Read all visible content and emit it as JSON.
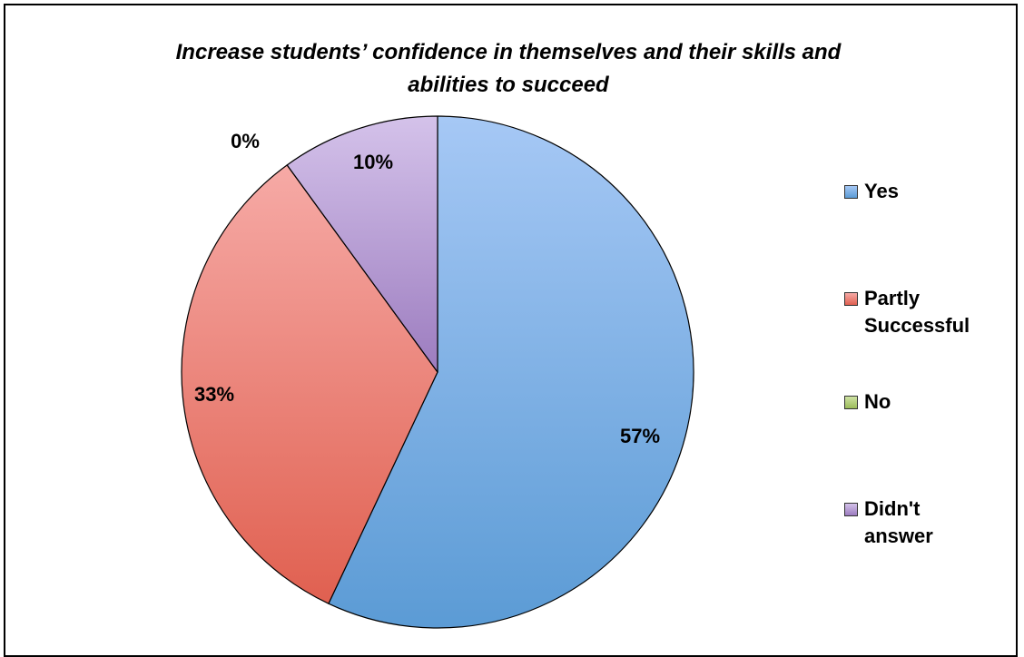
{
  "chart_data": {
    "type": "pie",
    "title_lines": [
      "Increase students’ confidence in themselves and their skills and",
      "abilities to succeed"
    ],
    "slices": [
      {
        "label": "Yes",
        "value": 57,
        "display": "57%",
        "color": "#5b9bd5",
        "light": "#a6c8f5"
      },
      {
        "label": "Partly Successful",
        "value": 33,
        "display": "33%",
        "color": "#e06050",
        "light": "#f6aaa6"
      },
      {
        "label": "No",
        "value": 0,
        "display": "0%",
        "color": "#9bbb59",
        "light": "#cfe3a4"
      },
      {
        "label": "Didn't answer",
        "value": 10,
        "display": "10%",
        "color": "#9c7cbf",
        "light": "#d4c2ea"
      }
    ],
    "legend_position": "right"
  },
  "legend_lines": [
    [
      "Yes"
    ],
    [
      "Partly",
      "Successful"
    ],
    [
      "No"
    ],
    [
      "Didn't",
      "answer"
    ]
  ]
}
